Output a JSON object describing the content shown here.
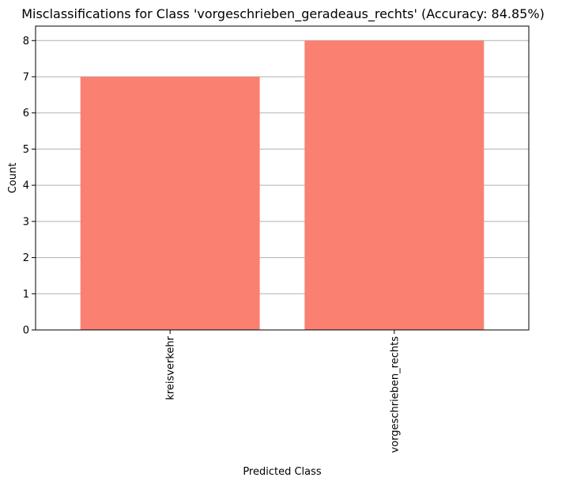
{
  "chart_data": {
    "type": "bar",
    "title": "Misclassifications for Class 'vorgeschrieben_geradeaus_rechts' (Accuracy: 84.85%)",
    "xlabel": "Predicted Class",
    "ylabel": "Count",
    "categories": [
      "kreisverkehr",
      "vorgeschrieben_rechts"
    ],
    "values": [
      7,
      8
    ],
    "ylim": [
      0,
      8.4
    ],
    "yticks": [
      "0",
      "1",
      "2",
      "3",
      "4",
      "5",
      "6",
      "7",
      "8"
    ],
    "grid": "y",
    "bar_color": "#fa8072",
    "grid_color": "#b0b0b0"
  }
}
